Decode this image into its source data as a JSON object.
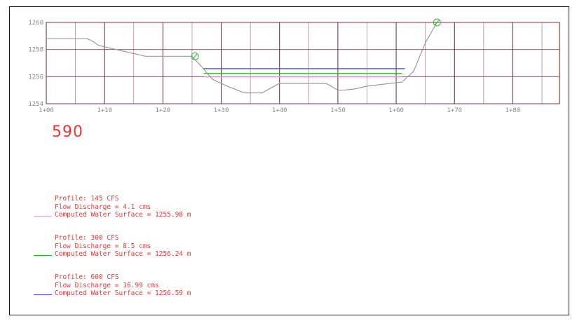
{
  "chart_data": {
    "type": "line",
    "station_label": "590",
    "y_ticks": [
      "1260",
      "1258",
      "1256",
      "1254"
    ],
    "x_ticks": [
      "1+00",
      "1+10",
      "1+20",
      "1+30",
      "1+40",
      "1+50",
      "1+60",
      "1+70",
      "1+80"
    ],
    "ylim": [
      1254,
      1260
    ],
    "xlim": [
      0,
      88
    ],
    "grid": true,
    "ground": {
      "x": [
        0,
        7,
        8,
        9,
        11,
        15,
        17,
        20,
        25,
        26.5,
        28.5,
        31,
        34,
        37,
        40,
        44,
        48,
        50,
        51,
        53,
        55,
        61,
        63,
        65,
        67
      ],
      "y": [
        1258.8,
        1258.8,
        1258.6,
        1258.3,
        1258.1,
        1257.7,
        1257.5,
        1257.5,
        1257.5,
        1256.8,
        1255.8,
        1255.3,
        1254.8,
        1254.8,
        1255.5,
        1255.5,
        1255.5,
        1255.0,
        1255.0,
        1255.1,
        1255.3,
        1255.6,
        1256.4,
        1258.5,
        1260.0
      ]
    },
    "bank_markers": [
      {
        "x": 25.5,
        "y": 1257.5
      },
      {
        "x": 67,
        "y": 1260.0
      }
    ],
    "series": [
      {
        "name": "Profile: 145 CFS",
        "color": "#e8a0e0",
        "wse": 1255.98,
        "x_range": [
          27,
          61
        ]
      },
      {
        "name": "Profile: 300 CFS",
        "color": "#35b835",
        "wse": 1256.24,
        "x_range": [
          27,
          61
        ]
      },
      {
        "name": "Profile: 600 CFS",
        "color": "#5050e8",
        "wse": 1256.59,
        "x_range": [
          27,
          61.5
        ]
      }
    ],
    "colors": {
      "grid": "#c0c0c0",
      "grid_major": "#7a1010",
      "grid_minor": "#888888",
      "ground": "#999999",
      "text": "#e23a3a"
    }
  },
  "legend": [
    {
      "color": "#e8a0e0",
      "line1": "Profile: 145 CFS",
      "line2": "Flow Discharge = 4.1 cms",
      "line3": "Computed Water Surface = 1255.98 m"
    },
    {
      "color": "#35b835",
      "line1": "Profile: 300 CFS",
      "line2": "Flow Discharge = 8.5 cms",
      "line3": "Computed Water Surface = 1256.24 m"
    },
    {
      "color": "#5050e8",
      "line1": "Profile: 600 CFS",
      "line2": "Flow Discharge = 16.99 cms",
      "line3": "Computed Water Surface = 1256.59 m"
    }
  ]
}
